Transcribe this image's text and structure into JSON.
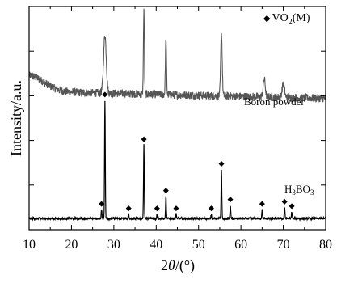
{
  "chart_data": {
    "type": "line",
    "xlabel": "2θ/(°)",
    "ylabel": "Intensity/a.u.",
    "xlim": [
      10,
      80
    ],
    "x_ticks": [
      "10",
      "20",
      "30",
      "40",
      "50",
      "60",
      "70",
      "80"
    ],
    "y_ticks_labeled": false,
    "grid": false,
    "legend": {
      "marker": "◆",
      "label": "VO2(M)",
      "position": "top-right"
    },
    "series": [
      {
        "name": "Boron powder",
        "color": "#555555",
        "baseline": 0.62,
        "peaks": [
          [
            27.9,
            0.26,
            0.45
          ],
          [
            37.1,
            0.38,
            0.16
          ],
          [
            42.3,
            0.25,
            0.18
          ],
          [
            55.4,
            0.28,
            0.25
          ],
          [
            65.5,
            0.08,
            0.35
          ],
          [
            70.0,
            0.06,
            0.4
          ]
        ]
      },
      {
        "name": "H3BO3",
        "color": "#000000",
        "baseline": 0.05,
        "peaks": [
          [
            27.9,
            0.53,
            0.12
          ],
          [
            37.1,
            0.33,
            0.12
          ],
          [
            42.3,
            0.1,
            0.12
          ],
          [
            55.4,
            0.22,
            0.12
          ],
          [
            57.5,
            0.06,
            0.12
          ],
          [
            65.0,
            0.04,
            0.12
          ],
          [
            70.3,
            0.05,
            0.12
          ],
          [
            72.0,
            0.03,
            0.12
          ],
          [
            27.1,
            0.04,
            0.12
          ],
          [
            33.5,
            0.02,
            0.12
          ],
          [
            40.2,
            0.02,
            0.12
          ],
          [
            44.7,
            0.02,
            0.12
          ],
          [
            53.0,
            0.02,
            0.12
          ]
        ],
        "vo2_markers_x": [
          27.1,
          27.9,
          33.5,
          37.1,
          40.2,
          42.3,
          44.7,
          53.0,
          55.4,
          57.5,
          65.0,
          70.3,
          72.0
        ]
      }
    ]
  },
  "labels": {
    "boron_series": "Boron powder",
    "h3bo3_main": "H",
    "h3bo3_sub1": "3",
    "h3bo3_mid": "BO",
    "h3bo3_sub2": "3",
    "legend_marker": "◆",
    "legend_prefix": "VO",
    "legend_sub": "2",
    "legend_suffix": "(M)",
    "xlabel_main": "2",
    "xlabel_theta": "θ",
    "xlabel_unit": "/(°)"
  }
}
